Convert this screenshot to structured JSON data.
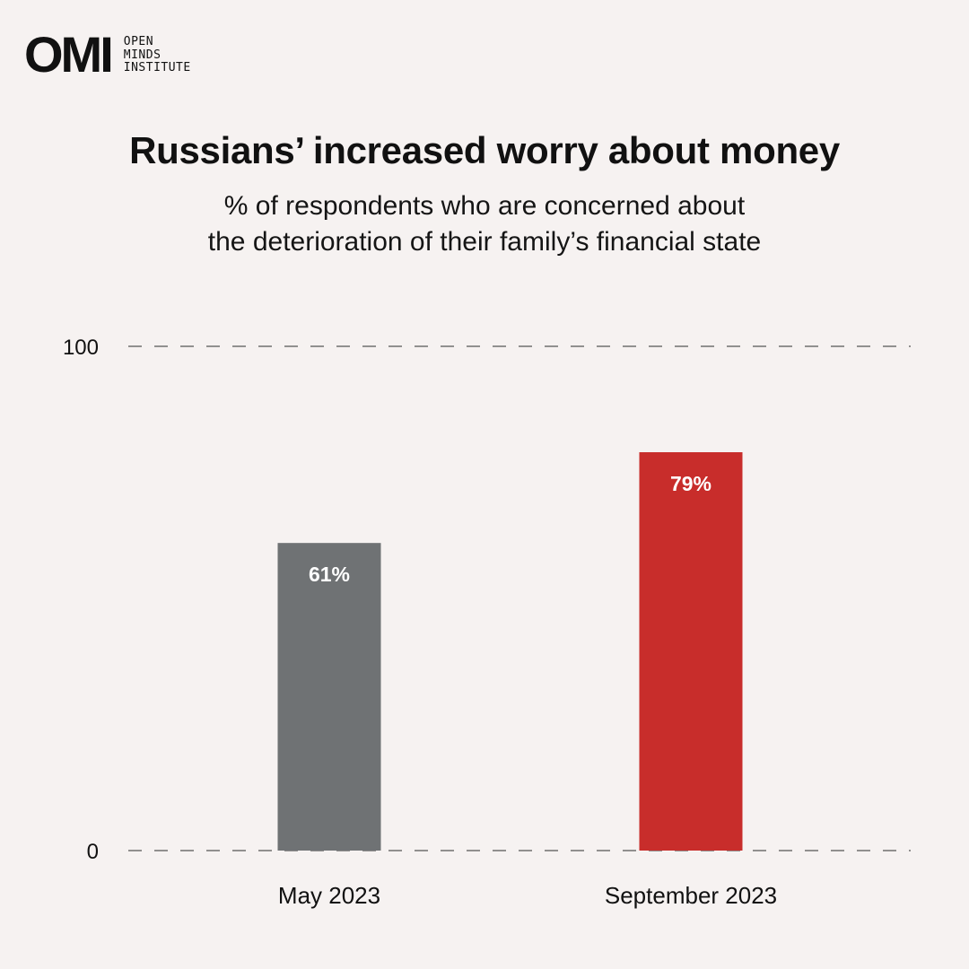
{
  "brand": {
    "mark": "OMI",
    "name_lines": [
      "OPEN",
      "MINDS",
      "INSTITUTE"
    ]
  },
  "header": {
    "title": "Russians’ increased worry about money",
    "subtitle_lines": [
      "% of respondents who are concerned about",
      "the deterioration of their family’s financial state"
    ]
  },
  "colors": {
    "background": "#f6f2f1",
    "bar_may": "#6f7274",
    "bar_sep": "#c82d2b",
    "grid": "#555555",
    "text": "#111111"
  },
  "chart_data": {
    "type": "bar",
    "title": "Russians’ increased worry about money",
    "ylabel": "% of respondents who are concerned about the deterioration of their family’s financial state",
    "xlabel": "",
    "categories": [
      "May 2023",
      "September 2023"
    ],
    "values": [
      61,
      79
    ],
    "value_labels": [
      "61%",
      "79%"
    ],
    "ylim": [
      0,
      100
    ],
    "yticks": [
      0,
      100
    ],
    "ytick_labels": [
      "0",
      "100"
    ],
    "grid": "dashed at ticks",
    "legend": "none"
  }
}
